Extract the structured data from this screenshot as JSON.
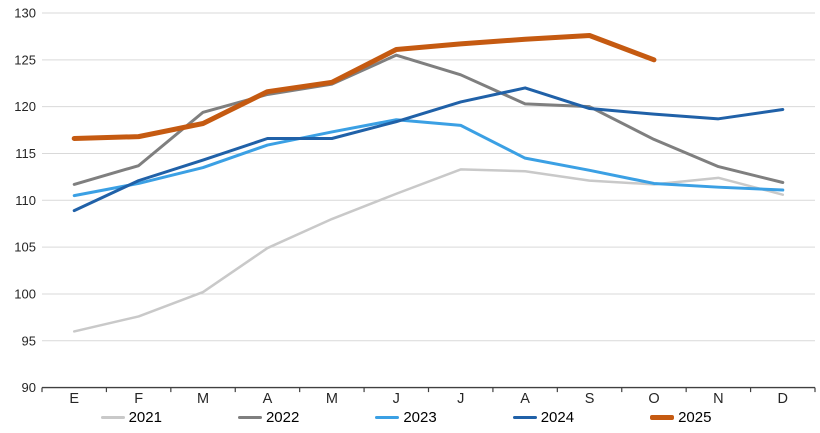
{
  "chart_data": {
    "type": "line",
    "title": "",
    "xlabel": "",
    "ylabel": "",
    "x_categories": [
      "E",
      "F",
      "M",
      "A",
      "M",
      "J",
      "J",
      "A",
      "S",
      "O",
      "N",
      "D"
    ],
    "ylim": [
      90,
      130
    ],
    "y_tick_step": 5,
    "grid": "horizontal",
    "legend_position": "bottom",
    "series": [
      {
        "name": "2021",
        "color": "#c9c9c9",
        "line_width": 2.5,
        "values": [
          96,
          97.6,
          100.2,
          104.9,
          108,
          110.7,
          113.3,
          113.1,
          112.1,
          111.7,
          112.4,
          110.6
        ]
      },
      {
        "name": "2022",
        "color": "#7f7f7f",
        "line_width": 3,
        "values": [
          111.7,
          113.7,
          119.4,
          121.3,
          122.4,
          125.5,
          123.4,
          120.3,
          120,
          116.5,
          113.6,
          111.9
        ]
      },
      {
        "name": "2023",
        "color": "#3ba0e4",
        "line_width": 3,
        "values": [
          110.5,
          111.8,
          113.5,
          115.9,
          117.3,
          118.6,
          118,
          114.5,
          113.2,
          111.8,
          111.4,
          111.1
        ]
      },
      {
        "name": "2024",
        "color": "#2061a8",
        "line_width": 3,
        "values": [
          108.9,
          112.1,
          114.3,
          116.6,
          116.6,
          118.4,
          120.5,
          122,
          119.8,
          119.2,
          118.7,
          119.7
        ]
      },
      {
        "name": "2025",
        "color": "#c55a11",
        "line_width": 5,
        "values": [
          116.6,
          116.8,
          118.2,
          121.6,
          122.6,
          126.1,
          126.7,
          127.2,
          127.6,
          125,
          null,
          null
        ]
      }
    ]
  },
  "style": {
    "background": "#ffffff",
    "gridline_color": "#d9d9d9",
    "axis_color": "#404040",
    "tick_label_color": "#262626"
  }
}
